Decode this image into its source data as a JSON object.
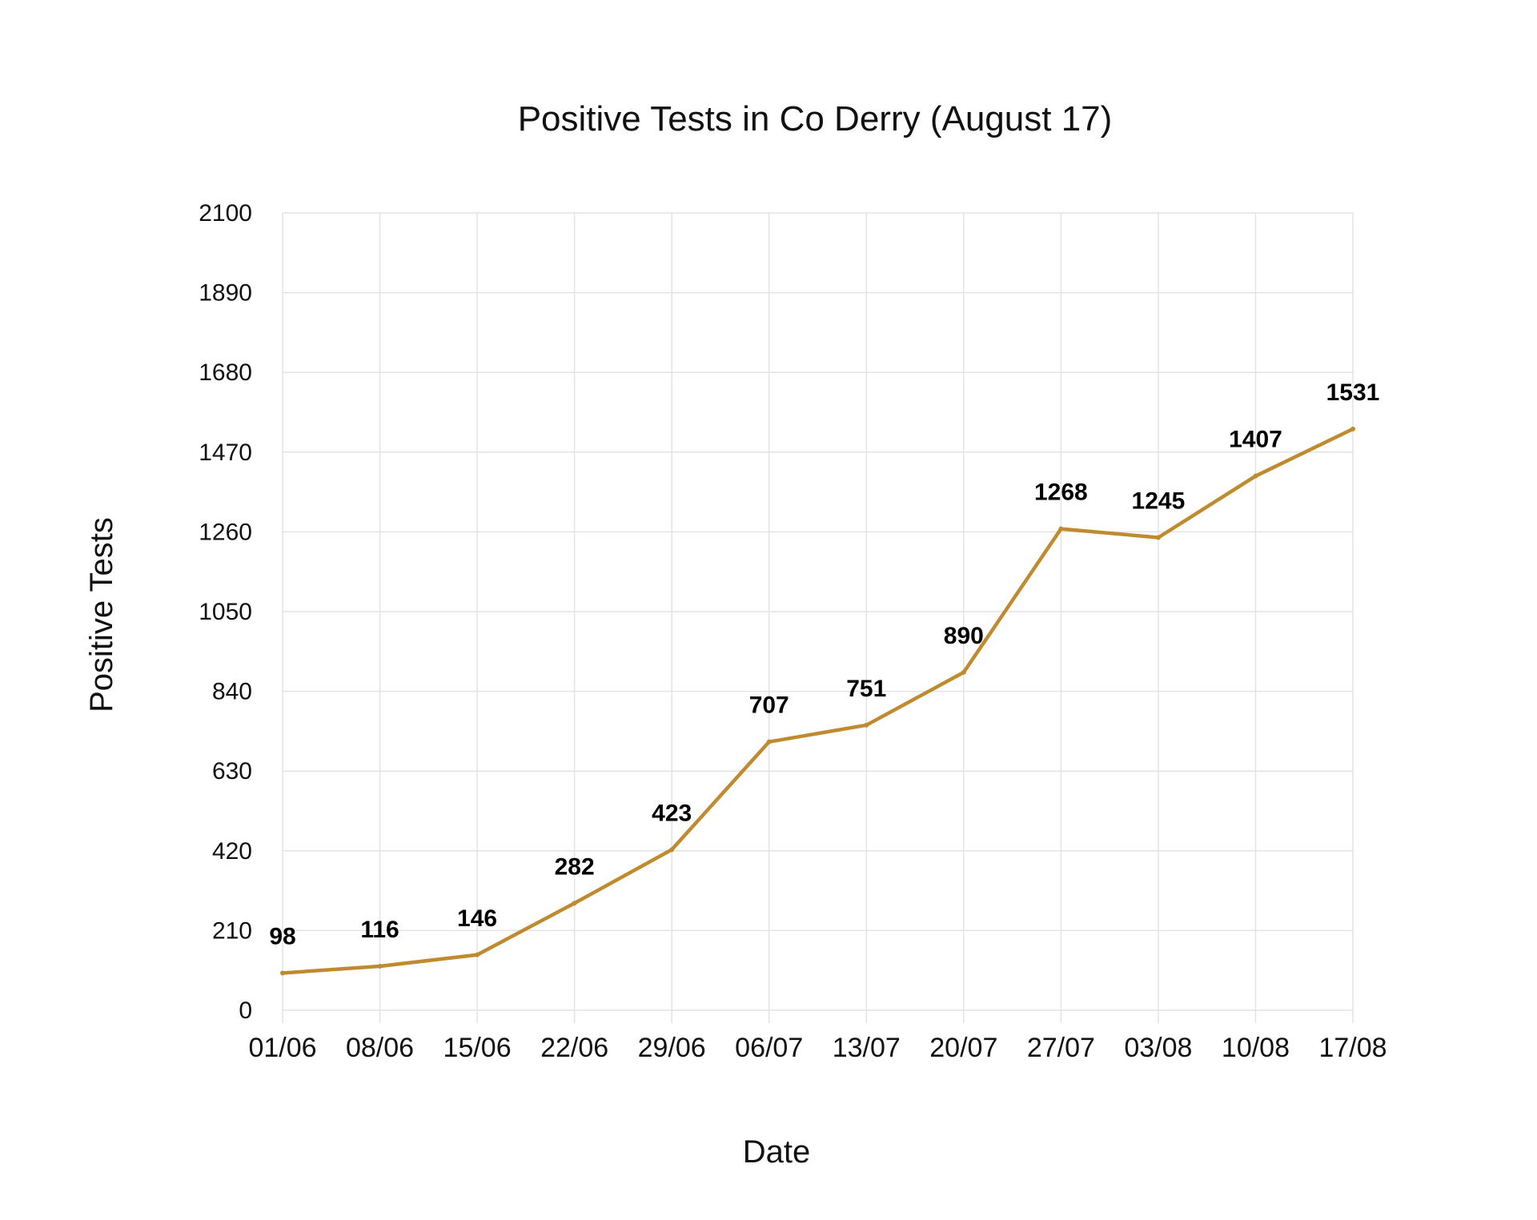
{
  "chart_data": {
    "type": "line",
    "title": "Positive Tests in Co Derry (August 17)",
    "xlabel": "Date",
    "ylabel": "Positive Tests",
    "categories": [
      "01/06",
      "08/06",
      "15/06",
      "22/06",
      "29/06",
      "06/07",
      "13/07",
      "20/07",
      "27/07",
      "03/08",
      "10/08",
      "17/08"
    ],
    "series": [
      {
        "values": [
          98,
          116,
          146,
          282,
          423,
          707,
          751,
          890,
          1268,
          1245,
          1407,
          1531
        ]
      }
    ],
    "data_labels": [
      "98",
      "116",
      "146",
      "282",
      "423",
      "707",
      "751",
      "890",
      "1268",
      "1245",
      "1407",
      "1531"
    ],
    "yticks": [
      0,
      210,
      420,
      630,
      840,
      1050,
      1260,
      1470,
      1680,
      1890,
      2100
    ],
    "ylim": [
      0,
      2100
    ],
    "grid": true,
    "legend": "none",
    "line_color": "#c08a2e"
  }
}
